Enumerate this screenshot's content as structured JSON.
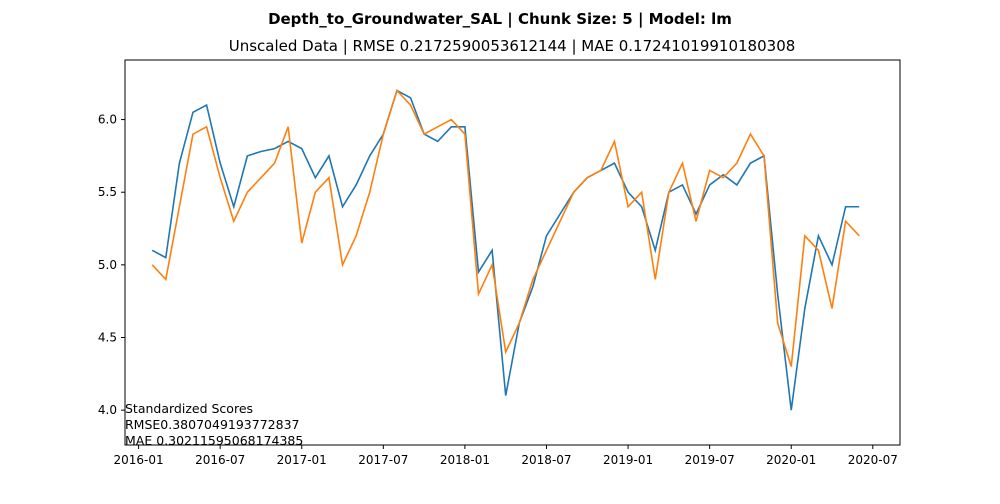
{
  "chart_data": {
    "type": "line",
    "title": "Depth_to_Groundwater_SAL | Chunk Size: 5 | Model: lm",
    "subtitle": "Unscaled Data | RMSE 0.2172590053612144 | MAE 0.17241019910180308",
    "annotations": [
      "Standardized Scores",
      "RMSE0.3807049193772837",
      "MAE 0.30211595068174385"
    ],
    "x": [
      "2016-02",
      "2016-03",
      "2016-04",
      "2016-05",
      "2016-06",
      "2016-07",
      "2016-08",
      "2016-09",
      "2016-10",
      "2016-11",
      "2016-12",
      "2017-01",
      "2017-02",
      "2017-03",
      "2017-04",
      "2017-05",
      "2017-06",
      "2017-07",
      "2017-08",
      "2017-09",
      "2017-10",
      "2017-11",
      "2017-12",
      "2018-01",
      "2018-02",
      "2018-03",
      "2018-04",
      "2018-05",
      "2018-06",
      "2018-07",
      "2018-08",
      "2018-09",
      "2018-10",
      "2018-11",
      "2018-12",
      "2019-01",
      "2019-02",
      "2019-03",
      "2019-04",
      "2019-05",
      "2019-06",
      "2019-07",
      "2019-08",
      "2019-09",
      "2019-10",
      "2019-11",
      "2019-12",
      "2020-01",
      "2020-02",
      "2020-03",
      "2020-04",
      "2020-05",
      "2020-06"
    ],
    "series": [
      {
        "color": "#1f77b4",
        "values": [
          5.1,
          5.05,
          5.7,
          6.05,
          6.1,
          5.7,
          5.4,
          5.75,
          5.78,
          5.8,
          5.85,
          5.8,
          5.6,
          5.75,
          5.4,
          5.55,
          5.75,
          5.9,
          6.2,
          6.15,
          5.9,
          5.85,
          5.95,
          5.95,
          4.95,
          5.1,
          4.1,
          4.6,
          4.85,
          5.2,
          5.35,
          5.5,
          5.6,
          5.65,
          5.7,
          5.5,
          5.4,
          5.1,
          5.5,
          5.55,
          5.35,
          5.55,
          5.62,
          5.55,
          5.7,
          5.75,
          4.8,
          4.0,
          4.7,
          5.2,
          5.0,
          5.4,
          5.4
        ]
      },
      {
        "color": "#ff7f0e",
        "values": [
          5.0,
          4.9,
          5.4,
          5.9,
          5.95,
          5.6,
          5.3,
          5.5,
          5.6,
          5.7,
          5.95,
          5.15,
          5.5,
          5.6,
          5.0,
          5.2,
          5.5,
          5.9,
          6.2,
          6.1,
          5.9,
          5.95,
          6.0,
          5.9,
          4.8,
          5.0,
          4.4,
          4.6,
          4.9,
          5.1,
          5.3,
          5.5,
          5.6,
          5.65,
          5.85,
          5.4,
          5.5,
          4.9,
          5.5,
          5.7,
          5.3,
          5.65,
          5.6,
          5.7,
          5.9,
          5.75,
          4.6,
          4.3,
          5.2,
          5.1,
          4.7,
          5.3,
          5.2
        ]
      }
    ],
    "xlim": [
      "2015-12",
      "2020-09"
    ],
    "xticks": [
      "2016-01",
      "2016-07",
      "2017-01",
      "2017-07",
      "2018-01",
      "2018-07",
      "2019-01",
      "2019-07",
      "2020-01",
      "2020-07"
    ],
    "ylim": [
      3.76,
      6.41
    ],
    "yticks": [
      {
        "value": 4,
        "label": "4.0"
      },
      4.5,
      {
        "value": 5,
        "label": "5.0"
      },
      5.5,
      {
        "value": 6,
        "label": "6.0"
      }
    ]
  }
}
